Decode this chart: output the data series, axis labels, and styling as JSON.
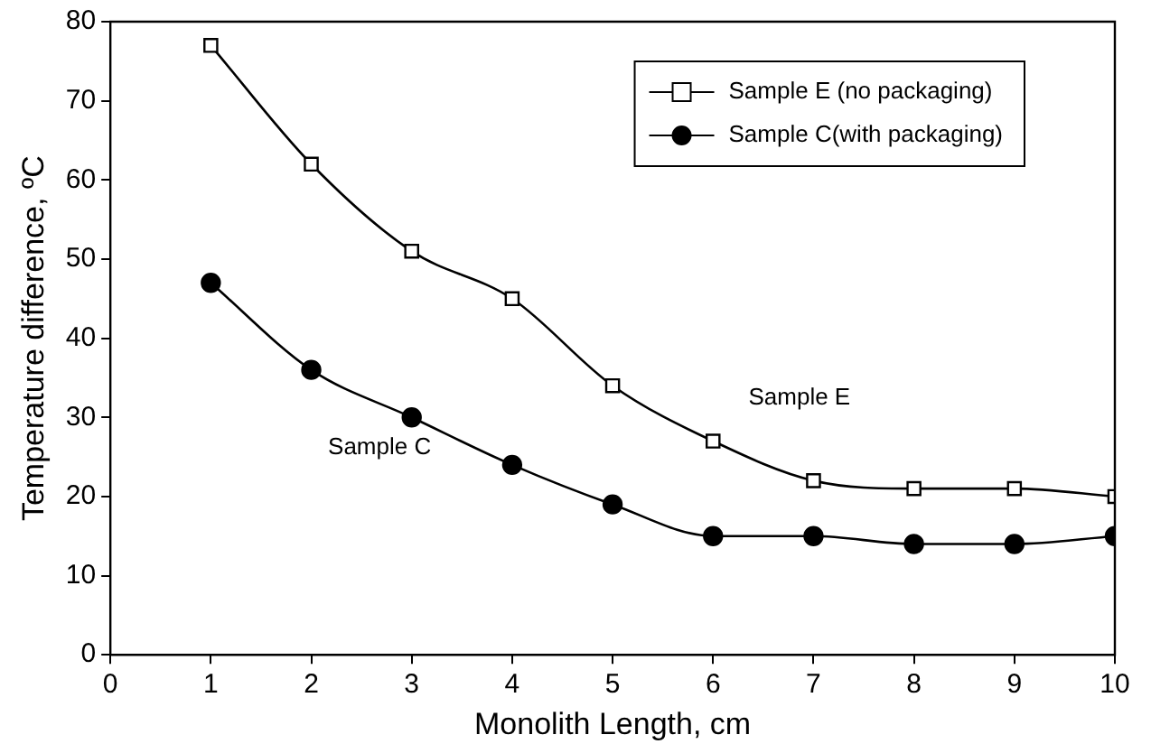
{
  "chart_data": {
    "type": "line",
    "xlabel": "Monolith Length, cm",
    "ylabel": "Temperature difference, ºC",
    "x": [
      1,
      2,
      3,
      4,
      5,
      6,
      7,
      8,
      9,
      10
    ],
    "series": [
      {
        "name": "Sample E (no packaging)",
        "color": "#000000",
        "marker": "square",
        "values": [
          77,
          62,
          51,
          45,
          34,
          27,
          22,
          21,
          21,
          20
        ]
      },
      {
        "name": "Sample C(with packaging)",
        "color": "#000000",
        "marker": "circle",
        "values": [
          47,
          36,
          30,
          24,
          19,
          15,
          15,
          14,
          14,
          15
        ]
      }
    ],
    "annotations": [
      "Sample E",
      "Sample C"
    ],
    "xlim": [
      0,
      10
    ],
    "xticks": [
      0,
      1,
      2,
      3,
      4,
      5,
      6,
      7,
      8,
      9,
      10
    ],
    "ylim": [
      0,
      80
    ],
    "yticks": [
      0,
      10,
      20,
      30,
      40,
      50,
      60,
      70,
      80
    ],
    "grid": false,
    "legend": "top right"
  }
}
